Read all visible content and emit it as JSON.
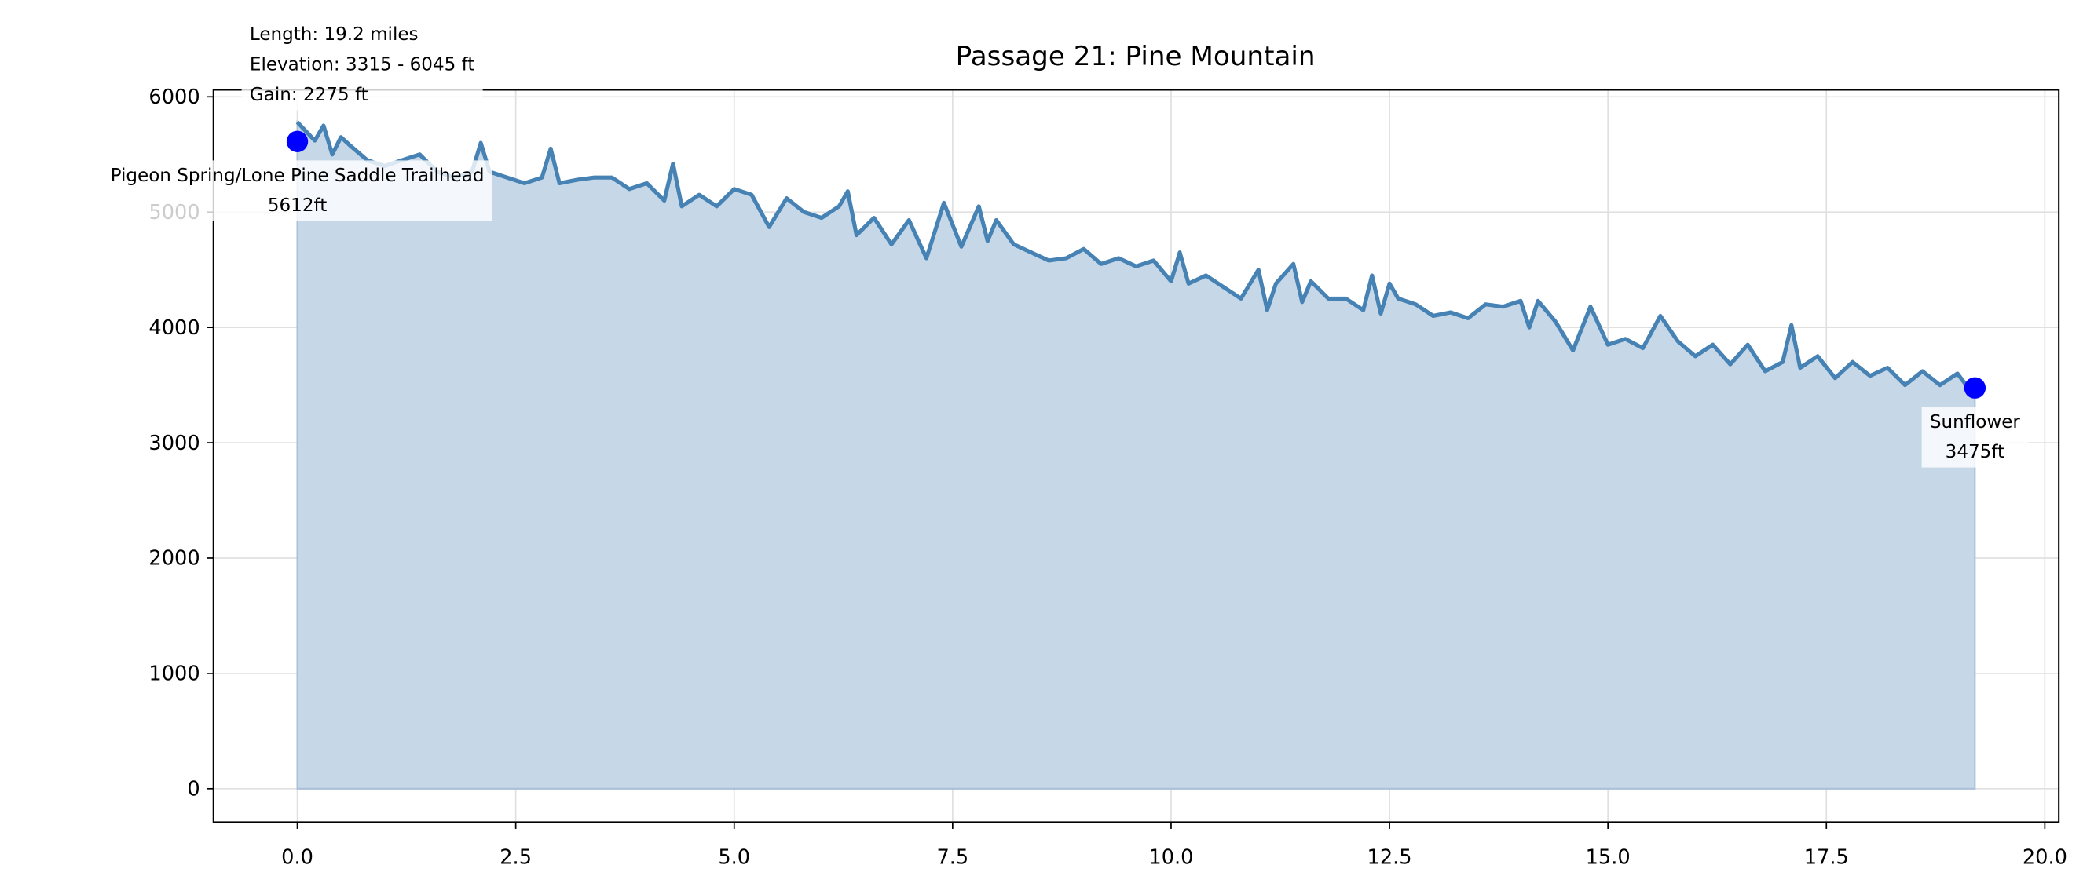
{
  "chart_data": {
    "type": "line",
    "title": "Passage 21: Pine Mountain",
    "info": [
      "Length: 19.2 miles",
      "Elevation: 3315 - 6045 ft",
      "Gain: 2275 ft"
    ],
    "color": "#4682b4",
    "fill_color": "#c6d8e8",
    "grid": true,
    "xlim": [
      -0.96,
      20.16
    ],
    "ylim": [
      -290,
      6060
    ],
    "xticks": [
      {
        "value": 0,
        "label": "0.0"
      },
      2.5,
      {
        "value": 5,
        "label": "5.0"
      },
      7.5,
      {
        "value": 10,
        "label": "10.0"
      },
      12.5,
      {
        "value": 15,
        "label": "15.0"
      },
      17.5,
      {
        "value": 20,
        "label": "20.0"
      }
    ],
    "yticks": [
      0,
      1000,
      2000,
      3000,
      4000,
      5000,
      6000
    ],
    "x": [
      0,
      0.2,
      0.3,
      0.4,
      0.5,
      0.6,
      0.8,
      1.0,
      1.2,
      1.4,
      1.6,
      1.8,
      2.0,
      2.1,
      2.2,
      2.4,
      2.6,
      2.8,
      2.9,
      3.0,
      3.2,
      3.4,
      3.6,
      3.8,
      4.0,
      4.2,
      4.3,
      4.4,
      4.6,
      4.8,
      5.0,
      5.2,
      5.4,
      5.6,
      5.8,
      6.0,
      6.2,
      6.3,
      6.4,
      6.6,
      6.8,
      7.0,
      7.2,
      7.4,
      7.6,
      7.8,
      7.9,
      8.0,
      8.2,
      8.4,
      8.6,
      8.8,
      9.0,
      9.2,
      9.4,
      9.6,
      9.8,
      10.0,
      10.1,
      10.2,
      10.4,
      10.6,
      10.8,
      11.0,
      11.1,
      11.2,
      11.4,
      11.5,
      11.6,
      11.8,
      12.0,
      12.2,
      12.3,
      12.4,
      12.5,
      12.6,
      12.8,
      13.0,
      13.2,
      13.4,
      13.6,
      13.8,
      14.0,
      14.1,
      14.2,
      14.4,
      14.6,
      14.8,
      15.0,
      15.2,
      15.4,
      15.6,
      15.8,
      16.0,
      16.2,
      16.4,
      16.6,
      16.8,
      17.0,
      17.1,
      17.2,
      17.4,
      17.6,
      17.8,
      18.0,
      18.2,
      18.4,
      18.6,
      18.8,
      19.0,
      19.2
    ],
    "values": [
      5780,
      5620,
      5750,
      5500,
      5650,
      5580,
      5450,
      5400,
      5450,
      5500,
      5350,
      5300,
      5350,
      5600,
      5350,
      5300,
      5250,
      5300,
      5550,
      5250,
      5280,
      5300,
      5300,
      5200,
      5250,
      5100,
      5420,
      5050,
      5150,
      5050,
      5200,
      5150,
      4870,
      5120,
      5000,
      4950,
      5050,
      5180,
      4800,
      4950,
      4720,
      4930,
      4600,
      5080,
      4700,
      5050,
      4750,
      4930,
      4720,
      4650,
      4580,
      4600,
      4680,
      4550,
      4600,
      4530,
      4580,
      4400,
      4650,
      4380,
      4450,
      4350,
      4250,
      4500,
      4150,
      4380,
      4550,
      4220,
      4400,
      4250,
      4250,
      4150,
      4450,
      4120,
      4380,
      4250,
      4200,
      4100,
      4130,
      4080,
      4200,
      4180,
      4230,
      4000,
      4230,
      4050,
      3800,
      4180,
      3850,
      3900,
      3820,
      4100,
      3880,
      3750,
      3850,
      3680,
      3850,
      3620,
      3700,
      4020,
      3650,
      3750,
      3560,
      3700,
      3580,
      3650,
      3500,
      3620,
      3500,
      3600,
      3400
    ],
    "points": [
      {
        "label": "Pigeon Spring/Lone Pine Saddle Trailhead",
        "x": 0,
        "value": 5612,
        "value_label": "5612ft",
        "color": "#0000ff"
      },
      {
        "label": "Sunflower",
        "x": 19.2,
        "value": 3475,
        "value_label": "3475ft",
        "color": "#0000ff"
      }
    ]
  }
}
